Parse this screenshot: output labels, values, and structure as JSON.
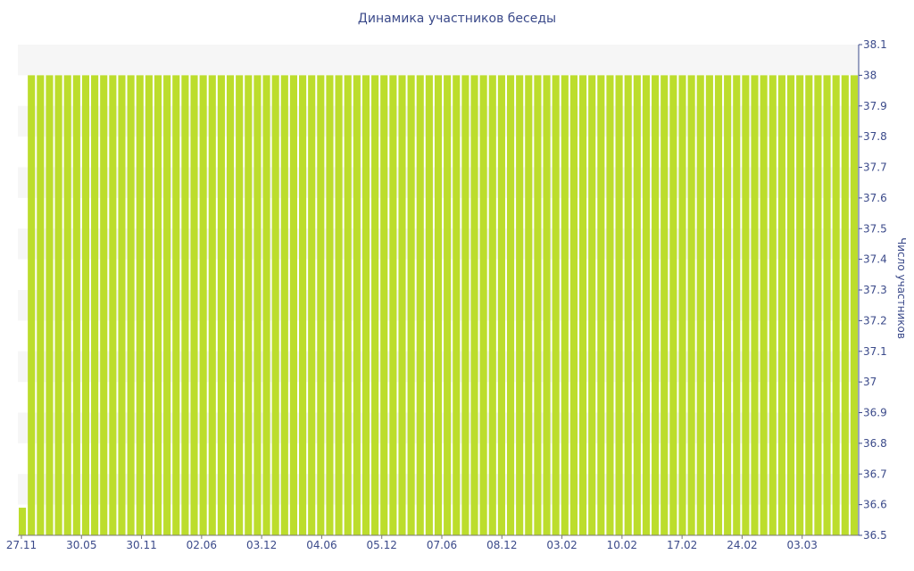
{
  "chart_data": {
    "type": "bar",
    "title": "Динамика участников беседы",
    "xlabel": "",
    "ylabel": "Число участников",
    "ylim": [
      36.5,
      38.1
    ],
    "y_axis_side": "right",
    "grid": "alternating horizontal bands",
    "y_ticks": [
      36.5,
      36.6,
      36.7,
      36.8,
      36.9,
      37,
      37.1,
      37.2,
      37.3,
      37.4,
      37.5,
      37.6,
      37.7,
      37.8,
      37.9,
      38,
      38.1
    ],
    "x_ticks": [
      "27.11",
      "30.05",
      "30.11",
      "02.06",
      "03.12",
      "04.06",
      "05.12",
      "07.06",
      "08.12",
      "03.02",
      "10.02",
      "17.02",
      "24.02",
      "03.03"
    ],
    "bar_count": 93,
    "values": [
      36.59,
      38,
      38,
      38,
      38,
      38,
      38,
      38,
      38,
      38,
      38,
      38,
      38,
      38,
      38,
      38,
      38,
      38,
      38,
      38,
      38,
      38,
      38,
      38,
      38,
      38,
      38,
      38,
      38,
      38,
      38,
      38,
      38,
      38,
      38,
      38,
      38,
      38,
      38,
      38,
      38,
      38,
      38,
      38,
      38,
      38,
      38,
      38,
      38,
      38,
      38,
      38,
      38,
      38,
      38,
      38,
      38,
      38,
      38,
      38,
      38,
      38,
      38,
      38,
      38,
      38,
      38,
      38,
      38,
      38,
      38,
      38,
      38,
      38,
      38,
      38,
      38,
      38,
      38,
      38,
      38,
      38,
      38,
      38,
      38,
      38,
      38,
      38,
      38,
      38,
      38,
      38,
      38
    ],
    "bar_color": "#bcdd2c",
    "band_color": "#f6f6f6",
    "text_color": "#3b4a8a"
  }
}
